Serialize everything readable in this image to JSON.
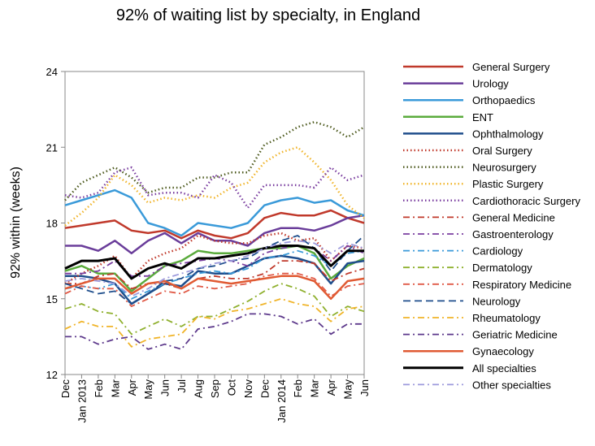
{
  "chart_data": {
    "type": "line",
    "title": "92% of waiting list by specialty, in England",
    "ylabel": "92% within (weeks)",
    "xlabel": "",
    "ylim": [
      12,
      24
    ],
    "yticks": [
      12,
      15,
      18,
      21,
      24
    ],
    "grid": false,
    "legend_position": "right",
    "x": [
      "Dec",
      "Jan 2013",
      "Feb",
      "Mar",
      "Apr",
      "May",
      "Jun",
      "Jul",
      "Aug",
      "Sep",
      "Oct",
      "Nov",
      "Dec",
      "Jan 2014",
      "Feb",
      "Mar",
      "Apr",
      "May",
      "Jun"
    ],
    "series": [
      {
        "name": "General Surgery",
        "color": "#c0392b",
        "dash": "solid",
        "width": 2.5,
        "values": [
          17.8,
          17.9,
          18.0,
          18.1,
          17.7,
          17.6,
          17.7,
          17.4,
          17.7,
          17.5,
          17.4,
          17.6,
          18.2,
          18.4,
          18.3,
          18.3,
          18.5,
          18.2,
          18.0
        ]
      },
      {
        "name": "Urology",
        "color": "#6a3d9a",
        "dash": "solid",
        "width": 2.5,
        "values": [
          17.1,
          17.1,
          16.9,
          17.3,
          16.8,
          17.3,
          17.6,
          17.2,
          17.6,
          17.3,
          17.3,
          17.1,
          17.6,
          17.8,
          17.8,
          17.7,
          17.9,
          18.2,
          18.3
        ]
      },
      {
        "name": "Orthopaedics",
        "color": "#3a9ad9",
        "dash": "solid",
        "width": 2.5,
        "values": [
          18.7,
          18.9,
          19.1,
          19.3,
          19.0,
          18.0,
          17.8,
          17.5,
          18.0,
          17.9,
          17.8,
          18.0,
          18.7,
          18.9,
          19.0,
          18.8,
          18.9,
          18.5,
          18.3
        ]
      },
      {
        "name": "ENT",
        "color": "#5aab3c",
        "dash": "solid",
        "width": 2.5,
        "values": [
          16.1,
          16.3,
          16.0,
          16.0,
          15.3,
          15.8,
          16.3,
          16.5,
          16.9,
          16.8,
          16.8,
          16.9,
          17.0,
          17.0,
          17.1,
          16.8,
          15.8,
          16.3,
          16.6
        ]
      },
      {
        "name": "Ophthalmology",
        "color": "#1f4e8c",
        "dash": "solid",
        "width": 2.5,
        "values": [
          15.9,
          15.9,
          15.8,
          15.6,
          14.8,
          15.2,
          15.6,
          15.5,
          16.1,
          16.0,
          16.0,
          16.3,
          16.6,
          16.7,
          16.6,
          16.4,
          15.6,
          16.4,
          16.5
        ]
      },
      {
        "name": "Oral Surgery",
        "color": "#c0392b",
        "dash": "dot",
        "width": 2.5,
        "values": [
          15.6,
          16.0,
          16.3,
          16.7,
          15.8,
          16.5,
          16.8,
          17.0,
          17.5,
          17.3,
          17.2,
          17.2,
          17.5,
          17.6,
          17.3,
          17.4,
          16.5,
          17.1,
          17.0
        ]
      },
      {
        "name": "Neurosurgery",
        "color": "#4d5a1e",
        "dash": "dot",
        "width": 2.5,
        "values": [
          18.9,
          19.6,
          19.9,
          20.2,
          19.8,
          19.2,
          19.4,
          19.4,
          19.8,
          19.8,
          20.0,
          20.0,
          21.1,
          21.4,
          21.8,
          22.0,
          21.8,
          21.4,
          21.8
        ]
      },
      {
        "name": "Plastic Surgery",
        "color": "#f0b429",
        "dash": "dot",
        "width": 2.5,
        "values": [
          17.9,
          18.4,
          19.0,
          19.9,
          19.5,
          18.8,
          19.0,
          18.9,
          19.1,
          19.0,
          19.4,
          19.6,
          20.4,
          20.8,
          21.0,
          20.4,
          19.7,
          18.7,
          18.2
        ]
      },
      {
        "name": "Cardiothoracic Surgery",
        "color": "#7b3fa0",
        "dash": "dot",
        "width": 2.5,
        "values": [
          19.1,
          19.0,
          19.2,
          20.0,
          20.2,
          19.1,
          19.2,
          19.2,
          19.0,
          19.9,
          19.6,
          18.6,
          19.5,
          19.5,
          19.5,
          19.4,
          20.2,
          19.7,
          19.9
        ]
      },
      {
        "name": "General Medicine",
        "color": "#c0392b",
        "dash": "dashdot",
        "width": 1.8,
        "values": [
          15.6,
          15.6,
          15.9,
          16.0,
          15.4,
          15.6,
          15.6,
          15.4,
          15.8,
          15.9,
          15.8,
          15.8,
          16.0,
          16.5,
          16.5,
          16.4,
          15.7,
          16.0,
          16.2
        ]
      },
      {
        "name": "Gastroenterology",
        "color": "#7b3fa0",
        "dash": "dashdot",
        "width": 1.8,
        "values": [
          16.0,
          16.0,
          16.1,
          16.5,
          15.9,
          15.9,
          16.3,
          16.4,
          16.5,
          16.6,
          16.5,
          16.3,
          16.8,
          17.0,
          17.1,
          17.0,
          16.5,
          17.1,
          16.8
        ]
      },
      {
        "name": "Cardiology",
        "color": "#3a9ad9",
        "dash": "dashdot",
        "width": 1.8,
        "values": [
          15.4,
          15.5,
          15.4,
          15.6,
          15.0,
          15.3,
          15.6,
          15.8,
          16.0,
          16.1,
          16.0,
          16.2,
          16.6,
          16.7,
          16.9,
          16.7,
          16.3,
          16.8,
          16.9
        ]
      },
      {
        "name": "Dermatology",
        "color": "#8fb02e",
        "dash": "dashdot",
        "width": 1.8,
        "values": [
          14.6,
          14.8,
          14.5,
          14.4,
          13.6,
          13.9,
          14.2,
          13.9,
          14.3,
          14.3,
          14.6,
          14.9,
          15.3,
          15.6,
          15.4,
          15.1,
          14.3,
          14.7,
          14.5
        ]
      },
      {
        "name": "Respiratory Medicine",
        "color": "#e05a47",
        "dash": "dashdot",
        "width": 1.8,
        "values": [
          15.2,
          15.5,
          15.4,
          15.4,
          14.7,
          15.0,
          15.3,
          15.2,
          15.5,
          15.4,
          15.5,
          15.6,
          15.9,
          16.0,
          16.0,
          15.8,
          15.1,
          15.5,
          15.6
        ]
      },
      {
        "name": "Neurology",
        "color": "#1f4e8c",
        "dash": "dash",
        "width": 1.8,
        "values": [
          15.6,
          15.4,
          15.2,
          15.3,
          14.8,
          15.2,
          15.7,
          15.8,
          16.2,
          16.3,
          16.5,
          16.6,
          17.0,
          17.3,
          17.5,
          17.0,
          16.1,
          16.9,
          17.5
        ]
      },
      {
        "name": "Rheumatology",
        "color": "#f0b429",
        "dash": "dashdot",
        "width": 1.8,
        "values": [
          13.8,
          14.1,
          13.9,
          13.9,
          13.1,
          13.4,
          13.5,
          13.6,
          14.3,
          14.2,
          14.5,
          14.6,
          14.8,
          15.0,
          14.8,
          14.7,
          14.1,
          14.6,
          14.7
        ]
      },
      {
        "name": "Geriatric Medicine",
        "color": "#5e3a8c",
        "dash": "dashdot",
        "width": 1.8,
        "values": [
          13.5,
          13.5,
          13.2,
          13.4,
          13.5,
          13.0,
          13.2,
          13.0,
          13.8,
          13.9,
          14.1,
          14.4,
          14.4,
          14.3,
          14.0,
          14.2,
          13.6,
          14.0,
          14.0
        ]
      },
      {
        "name": "Gynaecology",
        "color": "#e05a33",
        "dash": "solid",
        "width": 2.5,
        "values": [
          15.4,
          15.6,
          15.8,
          15.8,
          15.2,
          15.6,
          15.7,
          15.4,
          15.8,
          15.7,
          15.6,
          15.7,
          15.8,
          15.9,
          15.9,
          15.7,
          15.0,
          15.7,
          15.8
        ]
      },
      {
        "name": "All specialties",
        "color": "#000000",
        "dash": "solid",
        "width": 3,
        "values": [
          16.2,
          16.5,
          16.5,
          16.6,
          15.8,
          16.2,
          16.4,
          16.2,
          16.6,
          16.6,
          16.7,
          16.8,
          17.0,
          17.1,
          17.1,
          17.0,
          16.3,
          16.9,
          16.9
        ]
      },
      {
        "name": "Other specialties",
        "color": "#9d9adc",
        "dash": "dashdot",
        "width": 1.8,
        "values": [
          15.7,
          15.8,
          15.7,
          15.6,
          15.1,
          15.4,
          15.8,
          16.0,
          16.2,
          16.4,
          16.5,
          16.7,
          17.0,
          17.2,
          17.3,
          17.2,
          16.8,
          17.2,
          17.0
        ]
      }
    ]
  }
}
